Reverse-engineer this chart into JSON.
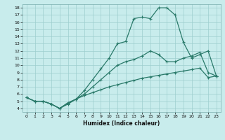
{
  "xlabel": "Humidex (Indice chaleur)",
  "bg_color": "#c8ecec",
  "grid_color": "#9ecece",
  "line_color": "#2a7a6a",
  "xlim": [
    -0.5,
    23.5
  ],
  "ylim": [
    3.5,
    18.5
  ],
  "xticks": [
    0,
    1,
    2,
    3,
    4,
    5,
    6,
    7,
    8,
    9,
    10,
    11,
    12,
    13,
    14,
    15,
    16,
    17,
    18,
    19,
    20,
    21,
    22,
    23
  ],
  "yticks": [
    4,
    5,
    6,
    7,
    8,
    9,
    10,
    11,
    12,
    13,
    14,
    15,
    16,
    17,
    18
  ],
  "line1_x": [
    0,
    1,
    2,
    3,
    4,
    5,
    6,
    7,
    8,
    9,
    10,
    11,
    12,
    13,
    14,
    15,
    16,
    17,
    18,
    19,
    20,
    21,
    22,
    23
  ],
  "line1_y": [
    5.5,
    5.0,
    5.0,
    4.6,
    4.0,
    4.8,
    5.3,
    5.8,
    6.2,
    6.6,
    7.0,
    7.3,
    7.6,
    7.9,
    8.2,
    8.4,
    8.6,
    8.8,
    9.0,
    9.2,
    9.4,
    9.6,
    8.3,
    8.5
  ],
  "line2_x": [
    0,
    1,
    2,
    3,
    4,
    5,
    6,
    7,
    8,
    9,
    10,
    11,
    12,
    13,
    14,
    15,
    16,
    17,
    18,
    19,
    20,
    21,
    22,
    23
  ],
  "line2_y": [
    5.5,
    5.0,
    5.0,
    4.6,
    4.0,
    4.6,
    5.3,
    6.5,
    8.0,
    9.5,
    11.0,
    13.0,
    13.3,
    16.5,
    16.7,
    16.5,
    18.0,
    18.0,
    17.0,
    13.2,
    11.0,
    11.5,
    12.0,
    8.5
  ],
  "line3_x": [
    0,
    1,
    2,
    3,
    4,
    5,
    6,
    7,
    8,
    9,
    10,
    11,
    12,
    13,
    14,
    15,
    16,
    17,
    18,
    19,
    20,
    21,
    22,
    23
  ],
  "line3_y": [
    5.5,
    5.0,
    5.0,
    4.6,
    4.0,
    4.7,
    5.3,
    6.0,
    7.0,
    8.0,
    9.0,
    10.0,
    10.5,
    10.8,
    11.3,
    12.0,
    11.5,
    10.5,
    10.5,
    11.0,
    11.3,
    11.8,
    9.0,
    8.5
  ]
}
